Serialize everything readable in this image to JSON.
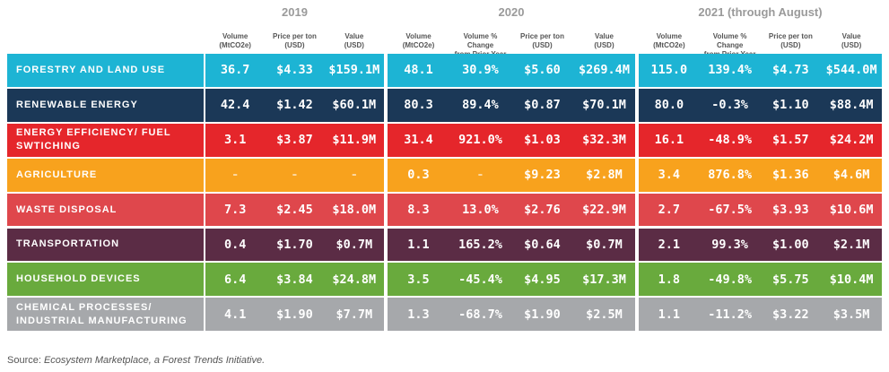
{
  "table": {
    "groups": [
      "2019",
      "2020",
      "2021 (through August)"
    ],
    "columns": [
      [
        [
          "Volume",
          "(MtCO2e)"
        ],
        [
          "Price per ton",
          "(USD)"
        ],
        [
          "Value",
          "(USD)"
        ]
      ],
      [
        [
          "Volume",
          "(MtCO2e)"
        ],
        [
          "Volume % Change",
          "from Prior Year"
        ],
        [
          "Price per ton",
          "(USD)"
        ],
        [
          "Value",
          "(USD)"
        ]
      ],
      [
        [
          "Volume",
          "(MtCO2e)"
        ],
        [
          "Volume % Change",
          "from Prior Year"
        ],
        [
          "Price per ton",
          "(USD)"
        ],
        [
          "Value",
          "(USD)"
        ]
      ]
    ],
    "rows": [
      {
        "label": [
          "FORESTRY AND LAND USE"
        ],
        "color": "#1db4d4",
        "cells": [
          "36.7",
          "$4.33",
          "$159.1M",
          "48.1",
          "30.9%",
          "$5.60",
          "$269.4M",
          "115.0",
          "139.4%",
          "$4.73",
          "$544.0M"
        ]
      },
      {
        "label": [
          "RENEWABLE ENERGY"
        ],
        "color": "#1b3857",
        "cells": [
          "42.4",
          "$1.42",
          "$60.1M",
          "80.3",
          "89.4%",
          "$0.87",
          "$70.1M",
          "80.0",
          "-0.3%",
          "$1.10",
          "$88.4M"
        ]
      },
      {
        "label": [
          "ENERGY EFFICIENCY/ FUEL",
          "SWTICHING"
        ],
        "color": "#e5262b",
        "cells": [
          "3.1",
          "$3.87",
          "$11.9M",
          "31.4",
          "921.0%",
          "$1.03",
          "$32.3M",
          "16.1",
          "-48.9%",
          "$1.57",
          "$24.2M"
        ]
      },
      {
        "label": [
          "AGRICULTURE"
        ],
        "color": "#f8a21d",
        "cells": [
          "-",
          "-",
          "-",
          "0.3",
          "-",
          "$9.23",
          "$2.8M",
          "3.4",
          "876.8%",
          "$1.36",
          "$4.6M"
        ]
      },
      {
        "label": [
          "WASTE DISPOSAL"
        ],
        "color": "#df474c",
        "cells": [
          "7.3",
          "$2.45",
          "$18.0M",
          "8.3",
          "13.0%",
          "$2.76",
          "$22.9M",
          "2.7",
          "-67.5%",
          "$3.93",
          "$10.6M"
        ]
      },
      {
        "label": [
          "TRANSPORTATION"
        ],
        "color": "#5b2c45",
        "cells": [
          "0.4",
          "$1.70",
          "$0.7M",
          "1.1",
          "165.2%",
          "$0.64",
          "$0.7M",
          "2.1",
          "99.3%",
          "$1.00",
          "$2.1M"
        ]
      },
      {
        "label": [
          "HOUSEHOLD DEVICES"
        ],
        "color": "#69aa3d",
        "cells": [
          "6.4",
          "$3.84",
          "$24.8M",
          "3.5",
          "-45.4%",
          "$4.95",
          "$17.3M",
          "1.8",
          "-49.8%",
          "$5.75",
          "$10.4M"
        ]
      },
      {
        "label": [
          "CHEMICAL PROCESSES/",
          "INDUSTRIAL MANUFACTURING"
        ],
        "color": "#a6a8ab",
        "cells": [
          "4.1",
          "$1.90",
          "$7.7M",
          "1.3",
          "-68.7%",
          "$1.90",
          "$2.5M",
          "1.1",
          "-11.2%",
          "$3.22",
          "$3.5M"
        ]
      }
    ]
  },
  "source": {
    "prefix": "Source: ",
    "text": "Ecosystem Marketplace, a Forest Trends Initiative."
  }
}
